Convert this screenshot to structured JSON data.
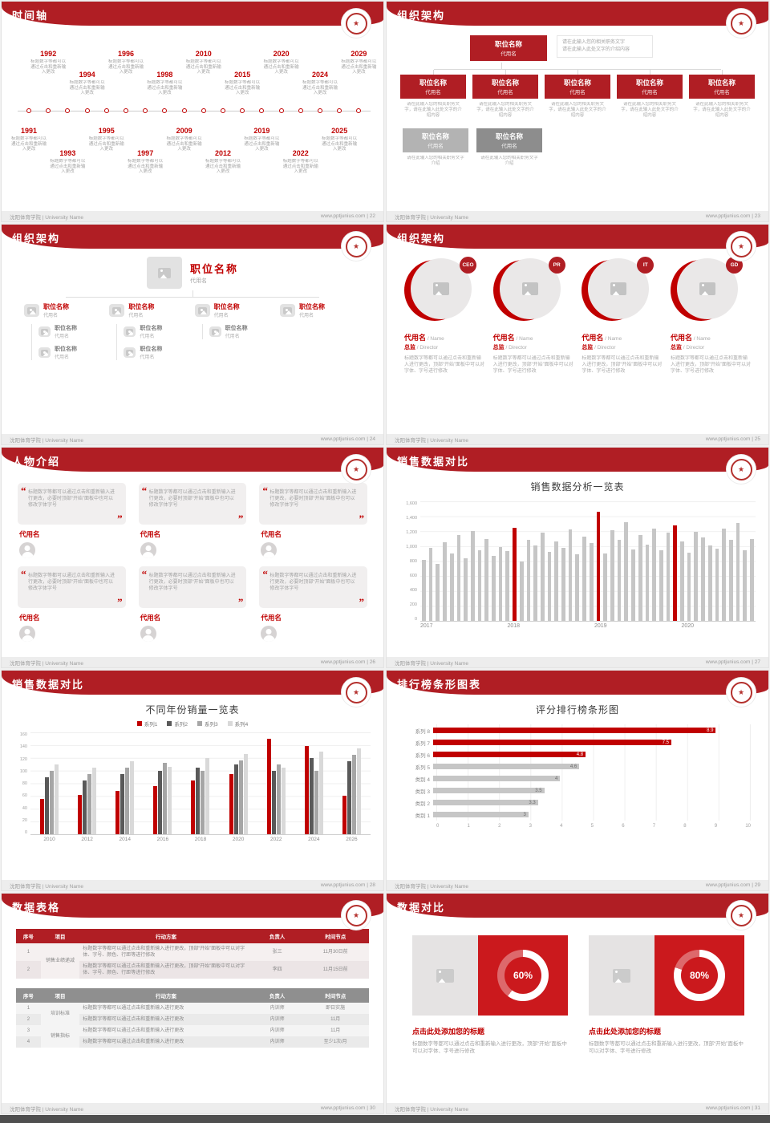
{
  "meta": {
    "footer_left": "沈阳体育学院 | University Name",
    "site": "www.pptjunius.com",
    "sep": " | ",
    "palette": {
      "header_red": "#b01e24",
      "accent_red": "#c00000",
      "panel_red": "#cb191d",
      "bar_gray": "#c6c6c6"
    }
  },
  "slides": {
    "timeline": {
      "page": "22",
      "title": "时间轴",
      "caption": "标题数字等都可以通过点击和重新输入更改",
      "items": [
        {
          "year": "1991",
          "cls": "bot lv0"
        },
        {
          "year": "1992",
          "cls": "top lv0"
        },
        {
          "year": "1993",
          "cls": "bot lv1"
        },
        {
          "year": "1994",
          "cls": "top lv1"
        },
        {
          "year": "1995",
          "cls": "bot lv0"
        },
        {
          "year": "1996",
          "cls": "top lv0"
        },
        {
          "year": "1997",
          "cls": "bot lv1"
        },
        {
          "year": "1998",
          "cls": "top lv1"
        },
        {
          "year": "2009",
          "cls": "bot lv0"
        },
        {
          "year": "2010",
          "cls": "top lv0"
        },
        {
          "year": "2012",
          "cls": "bot lv1"
        },
        {
          "year": "2015",
          "cls": "top lv1"
        },
        {
          "year": "2019",
          "cls": "bot lv0"
        },
        {
          "year": "2020",
          "cls": "top lv0"
        },
        {
          "year": "2022",
          "cls": "bot lv1"
        },
        {
          "year": "2024",
          "cls": "top lv1"
        },
        {
          "year": "2025",
          "cls": "bot lv0"
        },
        {
          "year": "2029",
          "cls": "top lv0"
        }
      ]
    },
    "org1": {
      "page": "23",
      "title": "组织架构",
      "root": {
        "title": "职位名称",
        "subtitle": "代用名"
      },
      "note1": "请在此输入您的相关职务文字",
      "note2": "请在此输入此处文字的介绍内容",
      "level1": [
        {
          "title": "职位名称",
          "subtitle": "代用名",
          "caption": "请在此输入您的相关职务文字，请在此输入此处文字的介绍内容"
        },
        {
          "title": "职位名称",
          "subtitle": "代用名",
          "caption": "请在此输入您的相关职务文字，请在此输入此处文字的介绍内容"
        },
        {
          "title": "职位名称",
          "subtitle": "代用名",
          "caption": "请在此输入您的相关职务文字，请在此输入此处文字的介绍内容"
        },
        {
          "title": "职位名称",
          "subtitle": "代用名",
          "caption": "请在此输入您的相关职务文字，请在此输入此处文字的介绍内容"
        },
        {
          "title": "职位名称",
          "subtitle": "代用名",
          "caption": "请在此输入您的相关职务文字，请在此输入此处文字的介绍内容"
        }
      ],
      "level2": [
        {
          "title": "职位名称",
          "subtitle": "代用名",
          "tone": "light",
          "caption": "请在此输入您的相关职务文字介绍"
        },
        {
          "title": "职位名称",
          "subtitle": "代用名",
          "tone": "dark",
          "caption": "请在此输入您的相关职务文字介绍"
        }
      ]
    },
    "org2": {
      "page": "24",
      "title": "组织架构",
      "root": {
        "title": "职位名称",
        "subtitle": "代用名"
      },
      "branches": [
        {
          "title": "职位名称",
          "subtitle": "代用名",
          "children": [
            {
              "title": "职位名称",
              "subtitle": "代用名"
            },
            {
              "title": "职位名称",
              "subtitle": "代用名"
            }
          ]
        },
        {
          "title": "职位名称",
          "subtitle": "代用名",
          "children": [
            {
              "title": "职位名称",
              "subtitle": "代用名"
            },
            {
              "title": "职位名称",
              "subtitle": "代用名"
            }
          ]
        },
        {
          "title": "职位名称",
          "subtitle": "代用名",
          "children": [
            {
              "title": "职位名称",
              "subtitle": "代用名"
            }
          ]
        },
        {
          "title": "职位名称",
          "subtitle": "代用名",
          "children": []
        }
      ]
    },
    "org3": {
      "page": "25",
      "title": "组织架构",
      "caption": "标题数字等都可以通过点击和重新输入进行更改，顶部“开始”面板中可以对字体、字号进行修改",
      "members": [
        {
          "tag": "CEO",
          "name": "代用名",
          "name_en": " / Name",
          "role": "总监",
          "role_en": " / Director"
        },
        {
          "tag": "PR",
          "name": "代用名",
          "name_en": " / Name",
          "role": "总监",
          "role_en": " / Director"
        },
        {
          "tag": "IT",
          "name": "代用名",
          "name_en": " / Name",
          "role": "总监",
          "role_en": " / Director"
        },
        {
          "tag": "GD",
          "name": "代用名",
          "name_en": " / Name",
          "role": "总监",
          "role_en": " / Director"
        }
      ]
    },
    "people": {
      "page": "26",
      "title": "人物介绍",
      "quote": "标题数字等都可以通过点击和重新输入进行更改，必要时顶部“开始”面板中也可以修改字体字号",
      "cards": [
        {
          "name": "代用名"
        },
        {
          "name": "代用名"
        },
        {
          "name": "代用名"
        },
        {
          "name": "代用名"
        },
        {
          "name": "代用名"
        },
        {
          "name": "代用名"
        }
      ]
    },
    "sales1": {
      "page": "27",
      "title": "销售数据对比",
      "chart_data": {
        "type": "bar",
        "title": "销售数据分析一览表",
        "x_labels": [
          "2017",
          "2018",
          "2019",
          "2020"
        ],
        "yticks": [
          "1,600",
          "1,400",
          "1,200",
          "1,000",
          "800",
          "600",
          "400",
          "200",
          "0"
        ],
        "ylim": [
          0,
          1600
        ],
        "values": [
          820,
          980,
          760,
          1050,
          900,
          1150,
          840,
          1200,
          950,
          1100,
          870,
          990,
          930,
          1250,
          800,
          1080,
          1010,
          1180,
          920,
          1060,
          980,
          1220,
          890,
          1130,
          1040,
          1460,
          900,
          1210,
          1090,
          1320,
          960,
          1150,
          1020,
          1240,
          940,
          1180,
          1280,
          1060,
          910,
          1190,
          1120,
          1010,
          970,
          1230,
          1080,
          1310,
          950,
          1100
        ],
        "red_indices": [
          13,
          25,
          36
        ]
      }
    },
    "sales2": {
      "page": "28",
      "title": "销售数据对比",
      "chart_data": {
        "type": "bar",
        "title": "不同年份销量一览表",
        "categories": [
          "2010",
          "2012",
          "2014",
          "2016",
          "2018",
          "2020",
          "2022",
          "2024",
          "2026"
        ],
        "yticks": [
          "160",
          "140",
          "120",
          "100",
          "80",
          "60",
          "40",
          "20",
          "0"
        ],
        "ylim": [
          0,
          160
        ],
        "series": [
          {
            "name": "系列1",
            "color": "#c00000",
            "values": [
              55,
              62,
              68,
              75,
              85,
              95,
              150,
              138,
              60
            ]
          },
          {
            "name": "系列2",
            "color": "#595959",
            "values": [
              90,
              85,
              95,
              100,
              105,
              110,
              100,
              120,
              115
            ]
          },
          {
            "name": "系列3",
            "color": "#a6a6a6",
            "values": [
              100,
              95,
              105,
              112,
              100,
              116,
              110,
              100,
              125
            ]
          },
          {
            "name": "系列4",
            "color": "#d9d9d9",
            "values": [
              110,
              105,
              115,
              106,
              120,
              126,
              104,
              130,
              135
            ]
          }
        ]
      }
    },
    "ranking": {
      "page": "29",
      "title": "排行榜条形图表",
      "chart_data": {
        "type": "bar",
        "orientation": "horizontal",
        "title": "评分排行榜条形图",
        "xticks": [
          "0",
          "1",
          "2",
          "3",
          "4",
          "5",
          "6",
          "7",
          "8",
          "9",
          "10"
        ],
        "xlim": [
          0,
          10
        ],
        "rows": [
          {
            "label": "系列 8",
            "value": 8.9,
            "display": "8.9",
            "tone": "red"
          },
          {
            "label": "系列 7",
            "value": 7.5,
            "display": "7.5",
            "tone": "red"
          },
          {
            "label": "系列 6",
            "value": 4.8,
            "display": "4.8",
            "tone": "red"
          },
          {
            "label": "系列 5",
            "value": 4.6,
            "display": "4.6",
            "tone": "gray"
          },
          {
            "label": "类别 4",
            "value": 4,
            "display": "4",
            "tone": "gray"
          },
          {
            "label": "类别 3",
            "value": 3.5,
            "display": "3.5",
            "tone": "gray"
          },
          {
            "label": "类别 2",
            "value": 3.3,
            "display": "3.3",
            "tone": "gray"
          },
          {
            "label": "类别 1",
            "value": 3,
            "display": "3",
            "tone": "gray"
          }
        ]
      }
    },
    "table": {
      "page": "30",
      "title": "数据表格",
      "tables": [
        {
          "tone": "redt",
          "headers": [
            "序号",
            "项目",
            "行动方案",
            "负责人",
            "时间节点"
          ],
          "groups": [
            {
              "project": "销售业绩递减",
              "rows": [
                {
                  "no": "1",
                  "action": "标题数字等都可以通过点击和重新输入进行更改，顶部“开始”面板中可以对字体、字号、颜色、行距等进行修改",
                  "owner": "张三",
                  "deadline": "11月30日前"
                },
                {
                  "no": "2",
                  "action": "标题数字等都可以通过点击和重新输入进行更改，顶部“开始”面板中可以对字体、字号、颜色、行距等进行修改",
                  "owner": "李四",
                  "deadline": "11月15日前"
                }
              ]
            }
          ]
        },
        {
          "tone": "grayt",
          "headers": [
            "序号",
            "项目",
            "行动方案",
            "负责人",
            "时间节点"
          ],
          "groups": [
            {
              "project": "培训标准",
              "rows": [
                {
                  "no": "1",
                  "action": "标题数字等都可以通过点击和重新输入进行更改",
                  "owner": "内训师",
                  "deadline": "即日实施"
                },
                {
                  "no": "2",
                  "action": "标题数字等都可以通过点击和重新输入进行更改",
                  "owner": "内训师",
                  "deadline": "11月"
                }
              ]
            },
            {
              "project": "销售指标",
              "rows": [
                {
                  "no": "3",
                  "action": "标题数字等都可以通过点击和重新输入进行更改",
                  "owner": "内训师",
                  "deadline": "11月"
                },
                {
                  "no": "4",
                  "action": "标题数字等都可以通过点击和重新输入进行更改",
                  "owner": "内训师",
                  "deadline": "至少1次/月"
                }
              ]
            }
          ]
        }
      ]
    },
    "compare": {
      "page": "31",
      "title": "数据对比",
      "cards": [
        {
          "percent": 60,
          "percent_display": "60%",
          "title": "点击此处添加您的标题",
          "caption": "标题数字等都可以通过点击和重新输入进行更改，顶部“开始”面板中可以对字体、字号进行修改"
        },
        {
          "percent": 80,
          "percent_display": "80%",
          "title": "点击此处添加您的标题",
          "caption": "标题数字等都可以通过点击和重新输入进行更改，顶部“开始”面板中可以对字体、字号进行修改"
        }
      ]
    }
  }
}
